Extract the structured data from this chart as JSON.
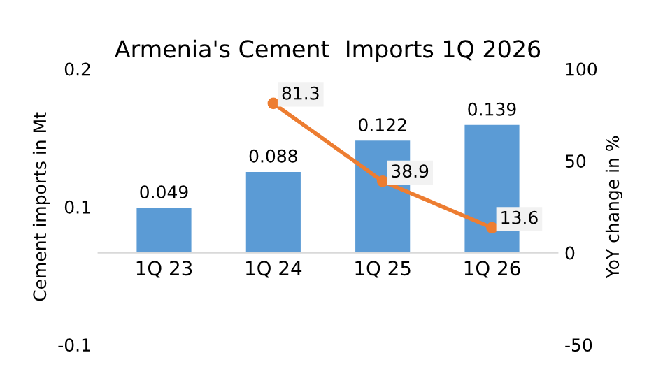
{
  "chart_data": {
    "type": "bar",
    "title": "Armenia's Cement  Imports 1Q 2026",
    "ylabel": "Cement imports in Mt",
    "y2label": "YoY change in %",
    "categories": [
      "1Q 23",
      "1Q 24",
      "1Q 25",
      "1Q 26"
    ],
    "series": [
      {
        "color": "#5b9bd5",
        "values": [
          0.049,
          0.088,
          0.122,
          0.139
        ]
      },
      {
        "type": "line",
        "axis": "y2",
        "color": "#ed7d31",
        "marker": "circle",
        "values": [
          null,
          81.3,
          38.9,
          13.6
        ]
      }
    ],
    "ylim": [
      -0.1,
      0.2
    ],
    "yticks": [
      {
        "value": -0.1,
        "label": "-0.1"
      },
      {
        "value": 0.05,
        "label": "0.1"
      },
      {
        "value": 0.2,
        "label": "0.2"
      }
    ],
    "y2lim": [
      -50,
      100
    ],
    "y2ticks": [
      -50,
      0,
      50,
      100
    ],
    "data_labels": true,
    "grid": false,
    "legend": false
  }
}
